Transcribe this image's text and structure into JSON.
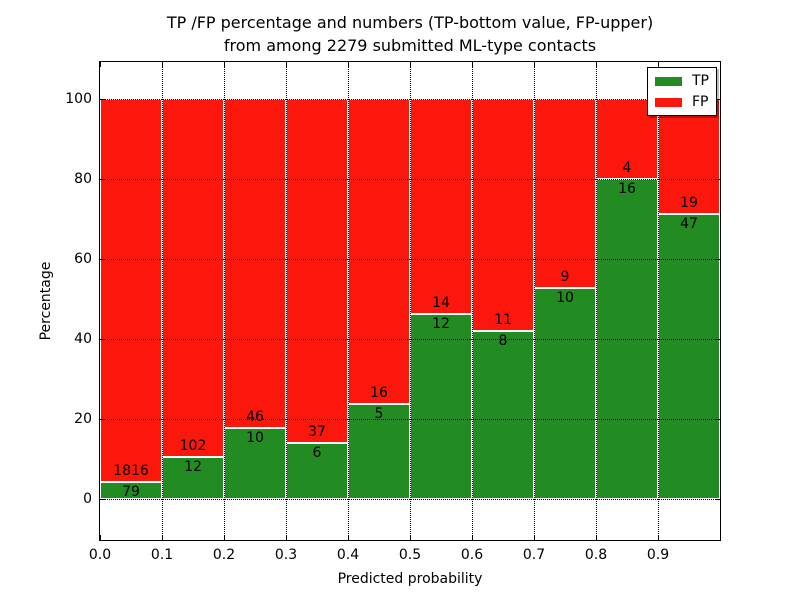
{
  "title": {
    "line1": "TP /FP percentage and numbers (TP-bottom value, FP-upper)",
    "line2": "from among 2279 submitted ML-type contacts"
  },
  "chart_data": {
    "type": "bar",
    "stacked": true,
    "title": "TP /FP percentage and numbers (TP-bottom value, FP-upper) from among 2279 submitted ML-type contacts",
    "xlabel": "Predicted probability",
    "ylabel": "Percentage",
    "xlim": [
      0.0,
      1.0
    ],
    "ylim": [
      -10.25,
      109.25
    ],
    "grid": true,
    "bar_width": 0.1,
    "bin_starts": [
      0.0,
      0.1,
      0.2,
      0.3,
      0.4,
      0.5,
      0.6,
      0.7,
      0.8,
      0.9
    ],
    "xtick_labels": [
      "0.0",
      "0.1",
      "0.2",
      "0.3",
      "0.4",
      "0.5",
      "0.6",
      "0.7",
      "0.8",
      "0.9"
    ],
    "ytick_values": [
      0,
      20,
      40,
      60,
      80,
      100
    ],
    "ytick_labels": [
      "0",
      "20",
      "40",
      "60",
      "80",
      "100"
    ],
    "series": [
      {
        "name": "TP",
        "color": "#228b22",
        "counts": [
          79,
          12,
          10,
          6,
          5,
          12,
          8,
          10,
          16,
          47
        ],
        "pct": [
          4.2,
          10.5,
          17.9,
          14.0,
          23.8,
          46.2,
          42.1,
          52.6,
          80.0,
          71.2
        ]
      },
      {
        "name": "FP",
        "color": "#fb170c",
        "counts": [
          1816,
          102,
          46,
          37,
          16,
          14,
          11,
          9,
          4,
          19
        ],
        "pct": [
          95.8,
          89.5,
          82.1,
          86.0,
          76.2,
          53.8,
          57.9,
          47.4,
          20.0,
          28.8
        ]
      }
    ],
    "legend": {
      "position": "upper right",
      "entries": [
        "TP",
        "FP"
      ]
    }
  }
}
